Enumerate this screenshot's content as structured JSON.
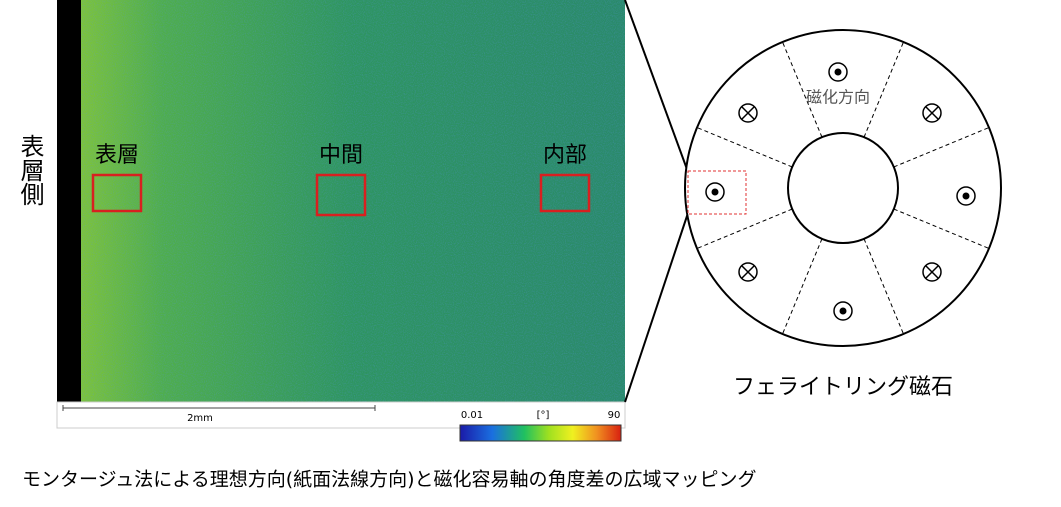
{
  "side_label": "表層側",
  "regions": [
    "表層",
    "中間",
    "内部"
  ],
  "scale_bar": "2mm",
  "colorbar": {
    "min": 0.01,
    "unit": "[°]",
    "max": 90
  },
  "ring": {
    "direction_label": "磁化方向",
    "caption": "フェライトリング磁石"
  },
  "caption": "モンタージュ法による理想方向(紙面法線方向)と磁化容易軸の角度差の広域マッピング"
}
